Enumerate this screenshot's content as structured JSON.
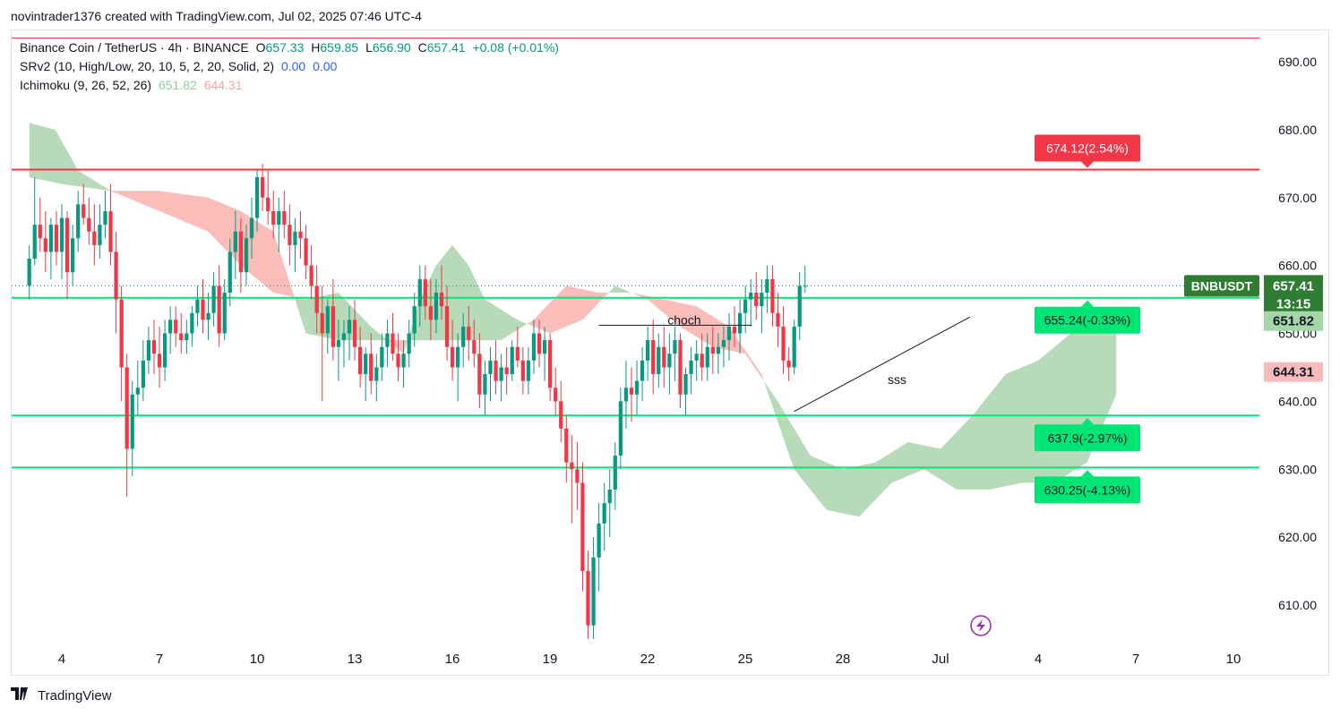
{
  "header": {
    "credit": "novintrader1376 created with TradingView.com, Jul 02, 2025 07:46 UTC-4"
  },
  "legend": {
    "symbol": "Binance Coin / TetherUS · 4h · BINANCE",
    "open_label": "O",
    "open": "657.33",
    "high_label": "H",
    "high": "659.85",
    "low_label": "L",
    "low": "656.90",
    "close_label": "C",
    "close": "657.41",
    "change": "+0.08 (+0.01%)",
    "srv2": "SRv2 (10, High/Low, 20, 10, 5, 2, 20, Solid, 2)",
    "srv2_v1": "0.00",
    "srv2_v2": "0.00",
    "ichimoku": "Ichimoku (9, 26, 52, 26)",
    "ich_a": "651.82",
    "ich_b": "644.31"
  },
  "chart_data": {
    "type": "candlestick",
    "symbol": "BNBUSDT",
    "timeframe": "4h",
    "y_ticks": [
      "610.00",
      "620.00",
      "630.00",
      "640.00",
      "650.00",
      "660.00",
      "670.00",
      "680.00",
      "690.00"
    ],
    "x_ticks": [
      "4",
      "7",
      "10",
      "13",
      "16",
      "19",
      "22",
      "25",
      "28",
      "Jul",
      "4",
      "7",
      "10"
    ],
    "ylim": [
      603,
      697
    ],
    "price_label": {
      "symbol": "BNBUSDT",
      "price": "657.41",
      "countdown": "13:15"
    },
    "ichimoku_labels": {
      "span_a": "651.82",
      "span_b": "644.31"
    },
    "levels": [
      {
        "price": 674.12,
        "label": "674.12(2.54%)",
        "color": "#f23645"
      },
      {
        "price": 655.24,
        "label": "655.24(-0.33%)",
        "color": "#00e676"
      },
      {
        "price": 637.9,
        "label": "637.9(-2.97%)",
        "color": "#00e676"
      },
      {
        "price": 630.25,
        "label": "630.25(-4.13%)",
        "color": "#00e676"
      }
    ],
    "top_level": 693.5,
    "annotations": [
      {
        "text": "choch",
        "price": 651.2
      },
      {
        "text": "sss",
        "price": 642.8
      }
    ],
    "trendline": {
      "from": {
        "day": 26.5,
        "price": 638.5
      },
      "to": {
        "day": 31.9,
        "price": 652.4
      }
    },
    "choch_line": {
      "from_day": 20.5,
      "to_day": 25.2,
      "price": 651.2
    },
    "candles_start_day": 3.0,
    "candle_step_day": 0.1667,
    "ohlc": [
      [
        657,
        663,
        655,
        661
      ],
      [
        661,
        673,
        660,
        666
      ],
      [
        666,
        670,
        662,
        664
      ],
      [
        664,
        668,
        659,
        662
      ],
      [
        662,
        667,
        658,
        666
      ],
      [
        666,
        668,
        660,
        662
      ],
      [
        662,
        669,
        658,
        667
      ],
      [
        667,
        668,
        655,
        659
      ],
      [
        659,
        666,
        657,
        664
      ],
      [
        664,
        671,
        662,
        669
      ],
      [
        669,
        672,
        666,
        667
      ],
      [
        667,
        670,
        663,
        665
      ],
      [
        665,
        669,
        660,
        663
      ],
      [
        663,
        669,
        661,
        666
      ],
      [
        666,
        671,
        664,
        668
      ],
      [
        668,
        672,
        660,
        662
      ],
      [
        662,
        665,
        650,
        655
      ],
      [
        655,
        657,
        640,
        645
      ],
      [
        645,
        647,
        626,
        633
      ],
      [
        633,
        643,
        629,
        641
      ],
      [
        641,
        646,
        638,
        642
      ],
      [
        642,
        649,
        640,
        646
      ],
      [
        646,
        651,
        644,
        649
      ],
      [
        649,
        652,
        644,
        647
      ],
      [
        647,
        651,
        642,
        645
      ],
      [
        645,
        652,
        643,
        650
      ],
      [
        650,
        654,
        647,
        652
      ],
      [
        652,
        654,
        648,
        650
      ],
      [
        650,
        653,
        647,
        649
      ],
      [
        649,
        652,
        647,
        650
      ],
      [
        650,
        654,
        648,
        653
      ],
      [
        653,
        657,
        651,
        655
      ],
      [
        655,
        658,
        650,
        652
      ],
      [
        652,
        656,
        649,
        653
      ],
      [
        653,
        659,
        651,
        657
      ],
      [
        657,
        660,
        648,
        650
      ],
      [
        650,
        658,
        649,
        656
      ],
      [
        656,
        664,
        654,
        662
      ],
      [
        662,
        668,
        658,
        665
      ],
      [
        665,
        667,
        656,
        659
      ],
      [
        659,
        666,
        657,
        664
      ],
      [
        664,
        670,
        661,
        667
      ],
      [
        667,
        674,
        665,
        673
      ],
      [
        673,
        675,
        668,
        670
      ],
      [
        670,
        674,
        666,
        668
      ],
      [
        668,
        671,
        664,
        666
      ],
      [
        666,
        670,
        662,
        668
      ],
      [
        668,
        671,
        664,
        666
      ],
      [
        666,
        669,
        660,
        663
      ],
      [
        663,
        667,
        659,
        665
      ],
      [
        665,
        668,
        661,
        664
      ],
      [
        664,
        666,
        658,
        660
      ],
      [
        660,
        663,
        655,
        657
      ],
      [
        657,
        660,
        650,
        653
      ],
      [
        653,
        657,
        640,
        650
      ],
      [
        650,
        655,
        647,
        654
      ],
      [
        654,
        658,
        646,
        648
      ],
      [
        648,
        652,
        643,
        649
      ],
      [
        649,
        652,
        645,
        650
      ],
      [
        650,
        654,
        646,
        652
      ],
      [
        652,
        655,
        646,
        648
      ],
      [
        648,
        651,
        642,
        644
      ],
      [
        644,
        648,
        640,
        647
      ],
      [
        647,
        650,
        641,
        643
      ],
      [
        643,
        647,
        640,
        645
      ],
      [
        645,
        650,
        643,
        648
      ],
      [
        648,
        652,
        645,
        650
      ],
      [
        650,
        653,
        646,
        647
      ],
      [
        647,
        650,
        643,
        645
      ],
      [
        645,
        649,
        642,
        647
      ],
      [
        647,
        652,
        645,
        650
      ],
      [
        650,
        656,
        648,
        654
      ],
      [
        654,
        660,
        651,
        658
      ],
      [
        658,
        660,
        652,
        654
      ],
      [
        654,
        658,
        649,
        652
      ],
      [
        652,
        658,
        650,
        656
      ],
      [
        656,
        660,
        652,
        654
      ],
      [
        654,
        657,
        646,
        648
      ],
      [
        648,
        652,
        643,
        645
      ],
      [
        645,
        650,
        640,
        648
      ],
      [
        648,
        653,
        645,
        651
      ],
      [
        651,
        654,
        646,
        649
      ],
      [
        649,
        652,
        645,
        647
      ],
      [
        647,
        650,
        639,
        641
      ],
      [
        641,
        646,
        638,
        644
      ],
      [
        644,
        648,
        640,
        646
      ],
      [
        646,
        649,
        641,
        643
      ],
      [
        643,
        647,
        640,
        645
      ],
      [
        645,
        648,
        641,
        644
      ],
      [
        644,
        649,
        643,
        648
      ],
      [
        648,
        651,
        645,
        646
      ],
      [
        646,
        648,
        641,
        643
      ],
      [
        643,
        648,
        641,
        646
      ],
      [
        646,
        652,
        644,
        650
      ],
      [
        650,
        652,
        645,
        647
      ],
      [
        647,
        651,
        643,
        649
      ],
      [
        649,
        650,
        640,
        642
      ],
      [
        642,
        645,
        638,
        640
      ],
      [
        640,
        643,
        634,
        636
      ],
      [
        636,
        638,
        628,
        631
      ],
      [
        631,
        635,
        622,
        630
      ],
      [
        630,
        634,
        624,
        628
      ],
      [
        628,
        631,
        612,
        615
      ],
      [
        615,
        618,
        605,
        607
      ],
      [
        607,
        620,
        605,
        617
      ],
      [
        617,
        625,
        612,
        622
      ],
      [
        622,
        628,
        618,
        625
      ],
      [
        625,
        630,
        620,
        627
      ],
      [
        627,
        634,
        624,
        632
      ],
      [
        632,
        642,
        630,
        640
      ],
      [
        640,
        646,
        636,
        642
      ],
      [
        642,
        645,
        637,
        641
      ],
      [
        641,
        646,
        638,
        643
      ],
      [
        643,
        648,
        640,
        646
      ],
      [
        646,
        651,
        643,
        649
      ],
      [
        649,
        652,
        641,
        644
      ],
      [
        644,
        650,
        642,
        648
      ],
      [
        648,
        651,
        642,
        645
      ],
      [
        645,
        650,
        641,
        647
      ],
      [
        647,
        651,
        643,
        649
      ],
      [
        649,
        650,
        639,
        641
      ],
      [
        641,
        645,
        638,
        644
      ],
      [
        644,
        648,
        641,
        646
      ],
      [
        646,
        649,
        643,
        647
      ],
      [
        647,
        650,
        643,
        645
      ],
      [
        645,
        650,
        643,
        648
      ],
      [
        648,
        651,
        644,
        647
      ],
      [
        647,
        650,
        644,
        648
      ],
      [
        648,
        651,
        645,
        649
      ],
      [
        649,
        653,
        646,
        651
      ],
      [
        651,
        654,
        648,
        650
      ],
      [
        650,
        655,
        647,
        653
      ],
      [
        653,
        657,
        650,
        655
      ],
      [
        655,
        658,
        651,
        656
      ],
      [
        656,
        659,
        652,
        654
      ],
      [
        654,
        658,
        650,
        656
      ],
      [
        656,
        660,
        653,
        658
      ],
      [
        658,
        660,
        651,
        653
      ],
      [
        653,
        656,
        648,
        651
      ],
      [
        651,
        654,
        644,
        646
      ],
      [
        646,
        648,
        643,
        645
      ],
      [
        645,
        652,
        644,
        651
      ],
      [
        651,
        659,
        649,
        657
      ],
      [
        657,
        660,
        656,
        657
      ]
    ],
    "ichimoku_cloud": {
      "span_a_hist": [
        [
          3.0,
          681
        ],
        [
          3.8,
          680
        ],
        [
          4.5,
          674
        ],
        [
          5.5,
          671
        ],
        [
          7.0,
          668
        ],
        [
          8.5,
          665
        ],
        [
          9.5,
          660
        ],
        [
          10.5,
          656
        ],
        [
          11.5,
          655
        ],
        [
          12.5,
          656
        ],
        [
          13.5,
          651
        ],
        [
          14.5,
          647
        ],
        [
          15.0,
          655
        ],
        [
          15.5,
          660
        ],
        [
          16.0,
          663
        ],
        [
          16.5,
          660
        ],
        [
          17.0,
          655
        ],
        [
          18.0,
          652
        ],
        [
          19.0,
          650
        ],
        [
          20.0,
          652
        ],
        [
          21.0,
          657
        ],
        [
          22.0,
          655
        ],
        [
          23.0,
          651
        ],
        [
          24.0,
          648
        ],
        [
          25.0,
          647
        ],
        [
          26.0,
          640
        ],
        [
          27.0,
          632
        ],
        [
          28.0,
          630
        ],
        [
          29.0,
          631
        ],
        [
          30.0,
          634
        ],
        [
          31.0,
          633
        ],
        [
          32.0,
          638
        ],
        [
          33.0,
          644
        ],
        [
          34.0,
          646
        ],
        [
          35.0,
          650
        ],
        [
          36.0,
          652
        ],
        [
          36.4,
          652
        ]
      ],
      "span_b_hist": [
        [
          3.0,
          673
        ],
        [
          4.0,
          672
        ],
        [
          5.5,
          671
        ],
        [
          7.0,
          671
        ],
        [
          8.5,
          670
        ],
        [
          9.5,
          668
        ],
        [
          10.5,
          665
        ],
        [
          11.5,
          650
        ],
        [
          12.5,
          649
        ],
        [
          13.5,
          649
        ],
        [
          14.5,
          649
        ],
        [
          15.5,
          649
        ],
        [
          16.5,
          649
        ],
        [
          17.5,
          649
        ],
        [
          18.5,
          652
        ],
        [
          19.5,
          657
        ],
        [
          20.5,
          656
        ],
        [
          21.5,
          656
        ],
        [
          22.5,
          655
        ],
        [
          23.5,
          654
        ],
        [
          24.5,
          651
        ],
        [
          25.5,
          644
        ],
        [
          26.5,
          630
        ],
        [
          27.5,
          624
        ],
        [
          28.5,
          623
        ],
        [
          29.5,
          628
        ],
        [
          30.5,
          630
        ],
        [
          31.5,
          627
        ],
        [
          32.5,
          627
        ],
        [
          33.5,
          628
        ],
        [
          34.5,
          628
        ],
        [
          35.5,
          631
        ],
        [
          36.4,
          641
        ]
      ]
    }
  },
  "footer": {
    "brand": "TradingView"
  }
}
